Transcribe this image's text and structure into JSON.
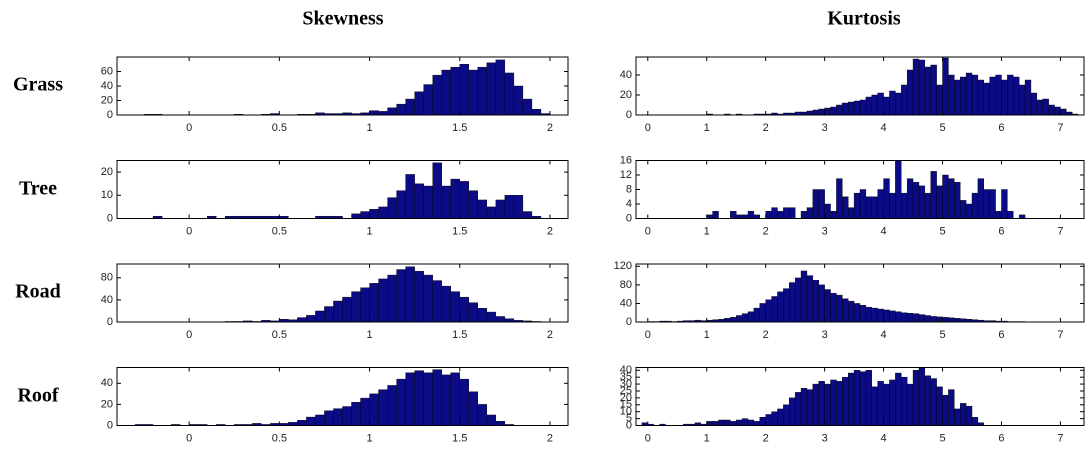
{
  "column_titles": [
    "Skewness",
    "Kurtosis"
  ],
  "row_labels": [
    "Grass",
    "Tree",
    "Road",
    "Roof"
  ],
  "chart_data": [
    {
      "type": "histogram",
      "color": "#0b0b85",
      "bins": [
        -0.4,
        -0.35,
        -0.3,
        -0.25,
        -0.2,
        -0.15,
        -0.1,
        -0.05,
        0,
        0.05,
        0.1,
        0.15,
        0.2,
        0.25,
        0.3,
        0.35,
        0.4,
        0.45,
        0.5,
        0.55,
        0.6,
        0.65,
        0.7,
        0.75,
        0.8,
        0.85,
        0.9,
        0.95,
        1,
        1.05,
        1.1,
        1.15,
        1.2,
        1.25,
        1.3,
        1.35,
        1.4,
        1.45,
        1.5,
        1.55,
        1.6,
        1.65,
        1.7,
        1.75,
        1.8,
        1.85,
        1.9,
        1.95,
        2,
        2.05,
        2.1
      ],
      "values": [
        0,
        0,
        0,
        1,
        1,
        0,
        0,
        0,
        0,
        0,
        0,
        0,
        0,
        1,
        0,
        0,
        1,
        2,
        0,
        0,
        1,
        1,
        3,
        2,
        2,
        3,
        2,
        3,
        6,
        5,
        10,
        15,
        22,
        32,
        42,
        55,
        62,
        66,
        70,
        62,
        66,
        72,
        76,
        58,
        40,
        22,
        8,
        2,
        0,
        0
      ],
      "xlim": [
        -0.4,
        2.1
      ],
      "ylim": [
        0,
        80
      ],
      "xticks": [
        0,
        0.5,
        1,
        1.5,
        2
      ],
      "yticks": [
        0,
        20,
        40,
        60
      ]
    },
    {
      "type": "histogram",
      "color": "#0b0b85",
      "bins": [
        -0.2,
        -0.1,
        0,
        0.1,
        0.2,
        0.3,
        0.4,
        0.5,
        0.6,
        0.7,
        0.8,
        0.9,
        1,
        1.1,
        1.2,
        1.3,
        1.4,
        1.5,
        1.6,
        1.7,
        1.8,
        1.9,
        2,
        2.1,
        2.2,
        2.3,
        2.4,
        2.5,
        2.6,
        2.7,
        2.8,
        2.9,
        3,
        3.1,
        3.2,
        3.3,
        3.4,
        3.5,
        3.6,
        3.7,
        3.8,
        3.9,
        4,
        4.1,
        4.2,
        4.3,
        4.4,
        4.5,
        4.6,
        4.7,
        4.8,
        4.9,
        5,
        5.1,
        5.2,
        5.3,
        5.4,
        5.5,
        5.6,
        5.7,
        5.8,
        5.9,
        6,
        6.1,
        6.2,
        6.3,
        6.4,
        6.5,
        6.6,
        6.7,
        6.8,
        6.9,
        7,
        7.1,
        7.2,
        7.3,
        7.4
      ],
      "values": [
        0,
        0,
        0,
        0,
        0,
        0,
        0,
        0,
        0,
        0,
        0,
        0,
        1,
        0,
        0,
        1,
        0,
        1,
        0,
        0,
        1,
        1,
        1,
        2,
        1,
        2,
        2,
        3,
        3,
        4,
        5,
        6,
        7,
        8,
        10,
        12,
        13,
        14,
        15,
        18,
        20,
        22,
        18,
        24,
        22,
        30,
        45,
        56,
        55,
        48,
        50,
        30,
        57,
        40,
        35,
        38,
        42,
        40,
        35,
        32,
        38,
        40,
        35,
        40,
        38,
        30,
        35,
        22,
        15,
        16,
        10,
        8,
        6,
        3,
        1,
        0
      ],
      "xlim": [
        -0.2,
        7.4
      ],
      "ylim": [
        0,
        58
      ],
      "xticks": [
        0,
        1,
        2,
        3,
        4,
        5,
        6,
        7
      ],
      "yticks": [
        0,
        20,
        40
      ]
    },
    {
      "type": "histogram",
      "color": "#0b0b85",
      "bins": [
        -0.4,
        -0.35,
        -0.3,
        -0.25,
        -0.2,
        -0.15,
        -0.1,
        -0.05,
        0,
        0.05,
        0.1,
        0.15,
        0.2,
        0.25,
        0.3,
        0.35,
        0.4,
        0.45,
        0.5,
        0.55,
        0.6,
        0.65,
        0.7,
        0.75,
        0.8,
        0.85,
        0.9,
        0.95,
        1,
        1.05,
        1.1,
        1.15,
        1.2,
        1.25,
        1.3,
        1.35,
        1.4,
        1.45,
        1.5,
        1.55,
        1.6,
        1.65,
        1.7,
        1.75,
        1.8,
        1.85,
        1.9,
        1.95,
        2,
        2.05,
        2.1
      ],
      "values": [
        0,
        0,
        0,
        0,
        1,
        0,
        0,
        0,
        0,
        0,
        1,
        0,
        1,
        1,
        1,
        1,
        1,
        1,
        1,
        0,
        0,
        0,
        1,
        1,
        1,
        0,
        2,
        3,
        4,
        5,
        9,
        12,
        19,
        15,
        14,
        24,
        14,
        17,
        16,
        12,
        8,
        5,
        8,
        10,
        10,
        3,
        1,
        0,
        0,
        0
      ],
      "xlim": [
        -0.4,
        2.1
      ],
      "ylim": [
        0,
        25
      ],
      "xticks": [
        0,
        0.5,
        1,
        1.5,
        2
      ],
      "yticks": [
        0,
        10,
        20
      ]
    },
    {
      "type": "histogram",
      "color": "#0b0b85",
      "bins": [
        -0.2,
        -0.1,
        0,
        0.1,
        0.2,
        0.3,
        0.4,
        0.5,
        0.6,
        0.7,
        0.8,
        0.9,
        1,
        1.1,
        1.2,
        1.3,
        1.4,
        1.5,
        1.6,
        1.7,
        1.8,
        1.9,
        2,
        2.1,
        2.2,
        2.3,
        2.4,
        2.5,
        2.6,
        2.7,
        2.8,
        2.9,
        3,
        3.1,
        3.2,
        3.3,
        3.4,
        3.5,
        3.6,
        3.7,
        3.8,
        3.9,
        4,
        4.1,
        4.2,
        4.3,
        4.4,
        4.5,
        4.6,
        4.7,
        4.8,
        4.9,
        5,
        5.1,
        5.2,
        5.3,
        5.4,
        5.5,
        5.6,
        5.7,
        5.8,
        5.9,
        6,
        6.1,
        6.2,
        6.3,
        6.4,
        6.5,
        6.6,
        6.7,
        6.8,
        6.9,
        7,
        7.1,
        7.2,
        7.3,
        7.4
      ],
      "values": [
        0,
        0,
        0,
        0,
        0,
        0,
        0,
        0,
        0,
        0,
        0,
        0,
        1,
        2,
        0,
        0,
        2,
        1,
        1,
        2,
        1,
        0,
        2,
        3,
        2,
        3,
        3,
        0,
        2,
        3,
        8,
        8,
        4,
        2,
        11,
        6,
        3,
        7,
        8,
        6,
        6,
        8,
        11,
        7,
        16,
        7,
        11,
        10,
        9,
        7,
        13,
        9,
        12,
        11,
        10,
        5,
        4,
        7,
        11,
        8,
        8,
        2,
        8,
        2,
        0,
        1,
        0,
        0,
        0,
        0,
        0,
        0,
        0,
        0,
        0,
        0
      ],
      "xlim": [
        -0.2,
        7.4
      ],
      "ylim": [
        0,
        16
      ],
      "xticks": [
        0,
        1,
        2,
        3,
        4,
        5,
        6,
        7
      ],
      "yticks": [
        0,
        4,
        8,
        12,
        16
      ]
    },
    {
      "type": "histogram",
      "color": "#0b0b85",
      "bins": [
        -0.4,
        -0.35,
        -0.3,
        -0.25,
        -0.2,
        -0.15,
        -0.1,
        -0.05,
        0,
        0.05,
        0.1,
        0.15,
        0.2,
        0.25,
        0.3,
        0.35,
        0.4,
        0.45,
        0.5,
        0.55,
        0.6,
        0.65,
        0.7,
        0.75,
        0.8,
        0.85,
        0.9,
        0.95,
        1,
        1.05,
        1.1,
        1.15,
        1.2,
        1.25,
        1.3,
        1.35,
        1.4,
        1.45,
        1.5,
        1.55,
        1.6,
        1.65,
        1.7,
        1.75,
        1.8,
        1.85,
        1.9,
        1.95,
        2,
        2.05,
        2.1
      ],
      "values": [
        0,
        0,
        0,
        0,
        0,
        0,
        0,
        0,
        0,
        0,
        0,
        0,
        1,
        1,
        2,
        1,
        3,
        2,
        5,
        4,
        8,
        12,
        20,
        28,
        38,
        45,
        55,
        62,
        70,
        78,
        85,
        95,
        100,
        92,
        85,
        75,
        65,
        55,
        45,
        35,
        25,
        18,
        10,
        6,
        3,
        2,
        1,
        0,
        0,
        0
      ],
      "xlim": [
        -0.4,
        2.1
      ],
      "ylim": [
        0,
        105
      ],
      "xticks": [
        0,
        0.5,
        1,
        1.5,
        2
      ],
      "yticks": [
        0,
        40,
        80
      ]
    },
    {
      "type": "histogram",
      "color": "#0b0b85",
      "bins": [
        -0.2,
        -0.1,
        0,
        0.1,
        0.2,
        0.3,
        0.4,
        0.5,
        0.6,
        0.7,
        0.8,
        0.9,
        1,
        1.1,
        1.2,
        1.3,
        1.4,
        1.5,
        1.6,
        1.7,
        1.8,
        1.9,
        2,
        2.1,
        2.2,
        2.3,
        2.4,
        2.5,
        2.6,
        2.7,
        2.8,
        2.9,
        3,
        3.1,
        3.2,
        3.3,
        3.4,
        3.5,
        3.6,
        3.7,
        3.8,
        3.9,
        4,
        4.1,
        4.2,
        4.3,
        4.4,
        4.5,
        4.6,
        4.7,
        4.8,
        4.9,
        5,
        5.1,
        5.2,
        5.3,
        5.4,
        5.5,
        5.6,
        5.7,
        5.8,
        5.9,
        6,
        6.1,
        6.2,
        6.3,
        6.4,
        6.5,
        6.6,
        6.7,
        6.8,
        6.9,
        7,
        7.1,
        7.2,
        7.3,
        7.4
      ],
      "values": [
        0,
        0,
        1,
        1,
        2,
        2,
        1,
        2,
        3,
        3,
        4,
        3,
        4,
        5,
        6,
        8,
        10,
        14,
        18,
        22,
        30,
        40,
        48,
        55,
        65,
        72,
        85,
        95,
        110,
        100,
        90,
        80,
        70,
        62,
        58,
        50,
        45,
        40,
        36,
        32,
        30,
        28,
        26,
        24,
        22,
        20,
        19,
        18,
        16,
        14,
        12,
        11,
        10,
        9,
        8,
        7,
        6,
        5,
        4,
        3,
        3,
        2,
        2,
        1,
        1,
        1,
        0,
        0,
        0,
        0,
        0,
        0,
        0,
        0,
        0,
        0
      ],
      "xlim": [
        -0.2,
        7.4
      ],
      "ylim": [
        0,
        125
      ],
      "xticks": [
        0,
        1,
        2,
        3,
        4,
        5,
        6,
        7
      ],
      "yticks": [
        0,
        40,
        80,
        120
      ]
    },
    {
      "type": "histogram",
      "color": "#0b0b85",
      "bins": [
        -0.4,
        -0.35,
        -0.3,
        -0.25,
        -0.2,
        -0.15,
        -0.1,
        -0.05,
        0,
        0.05,
        0.1,
        0.15,
        0.2,
        0.25,
        0.3,
        0.35,
        0.4,
        0.45,
        0.5,
        0.55,
        0.6,
        0.65,
        0.7,
        0.75,
        0.8,
        0.85,
        0.9,
        0.95,
        1,
        1.05,
        1.1,
        1.15,
        1.2,
        1.25,
        1.3,
        1.35,
        1.4,
        1.45,
        1.5,
        1.55,
        1.6,
        1.65,
        1.7,
        1.75,
        1.8,
        1.85,
        1.9,
        1.95,
        2,
        2.05,
        2.1
      ],
      "values": [
        0,
        0,
        1,
        1,
        0,
        0,
        1,
        0,
        1,
        1,
        0,
        1,
        0,
        1,
        1,
        2,
        1,
        2,
        2,
        3,
        5,
        8,
        10,
        14,
        16,
        18,
        22,
        26,
        30,
        34,
        38,
        44,
        50,
        52,
        50,
        53,
        48,
        50,
        44,
        32,
        20,
        10,
        4,
        1,
        0,
        0,
        0,
        0,
        0,
        0
      ],
      "xlim": [
        -0.4,
        2.1
      ],
      "ylim": [
        0,
        55
      ],
      "xticks": [
        0,
        0.5,
        1,
        1.5,
        2
      ],
      "yticks": [
        0,
        20,
        40
      ]
    },
    {
      "type": "histogram",
      "color": "#0b0b85",
      "bins": [
        -0.2,
        -0.1,
        0,
        0.1,
        0.2,
        0.3,
        0.4,
        0.5,
        0.6,
        0.7,
        0.8,
        0.9,
        1,
        1.1,
        1.2,
        1.3,
        1.4,
        1.5,
        1.6,
        1.7,
        1.8,
        1.9,
        2,
        2.1,
        2.2,
        2.3,
        2.4,
        2.5,
        2.6,
        2.7,
        2.8,
        2.9,
        3,
        3.1,
        3.2,
        3.3,
        3.4,
        3.5,
        3.6,
        3.7,
        3.8,
        3.9,
        4,
        4.1,
        4.2,
        4.3,
        4.4,
        4.5,
        4.6,
        4.7,
        4.8,
        4.9,
        5,
        5.1,
        5.2,
        5.3,
        5.4,
        5.5,
        5.6,
        5.7,
        5.8,
        5.9,
        6,
        6.1,
        6.2,
        6.3,
        6.4,
        6.5,
        6.6,
        6.7,
        6.8,
        6.9,
        7,
        7.1,
        7.2,
        7.3,
        7.4
      ],
      "values": [
        0,
        2,
        1,
        0,
        1,
        0,
        0,
        0,
        1,
        1,
        2,
        1,
        3,
        3,
        4,
        4,
        3,
        4,
        5,
        4,
        3,
        6,
        8,
        10,
        12,
        15,
        20,
        24,
        27,
        26,
        30,
        32,
        30,
        33,
        32,
        35,
        38,
        40,
        39,
        40,
        28,
        32,
        30,
        33,
        38,
        35,
        30,
        40,
        42,
        36,
        34,
        28,
        22,
        26,
        12,
        16,
        14,
        6,
        2,
        0,
        0,
        0,
        0,
        0,
        0,
        0,
        0,
        0,
        0,
        0,
        0,
        0,
        0,
        0,
        0,
        0
      ],
      "xlim": [
        -0.2,
        7.4
      ],
      "ylim": [
        0,
        42
      ],
      "xticks": [
        0,
        1,
        2,
        3,
        4,
        5,
        6,
        7
      ],
      "yticks": [
        0,
        5,
        10,
        15,
        20,
        25,
        30,
        35,
        40
      ]
    }
  ]
}
